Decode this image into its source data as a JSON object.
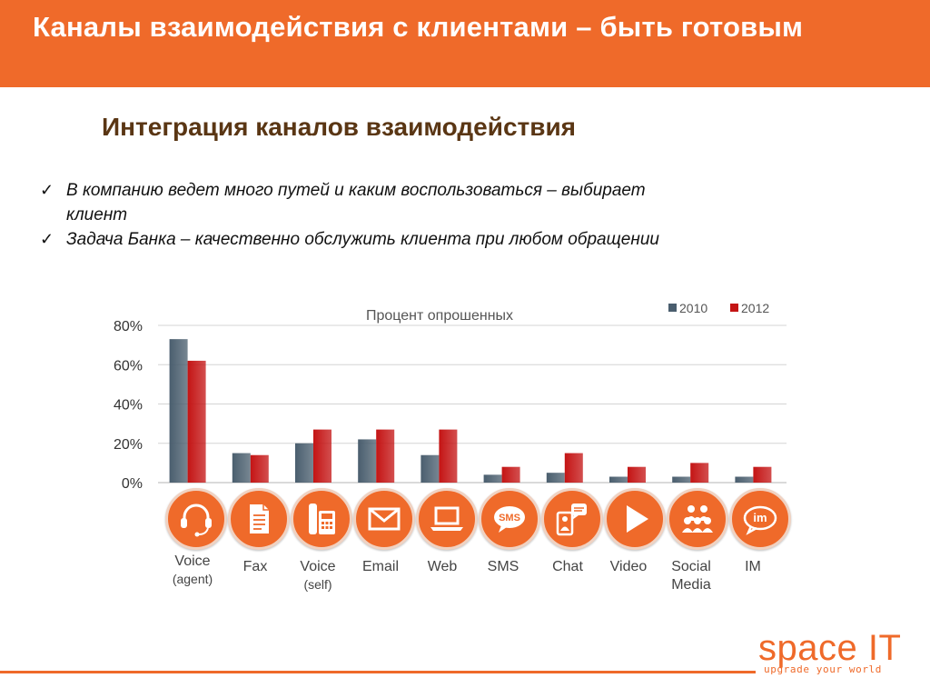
{
  "header": {
    "title": "Каналы взаимодействия с клиентами – быть готовым"
  },
  "subtitle": "Интеграция каналов взаимодействия",
  "bullets": [
    {
      "check": "✓",
      "text": "В компанию ведет много путей и каким воспользоваться – выбирает клиент"
    },
    {
      "check": "✓",
      "text": "Задача Банка – качественно обслужить клиента при любом обращении"
    }
  ],
  "chart_data": {
    "type": "bar",
    "title": "Процент опрошенных",
    "categories": [
      "Voice (agent)",
      "Fax",
      "Voice (self)",
      "Email",
      "Web",
      "SMS",
      "Chat",
      "Video",
      "Social Media",
      "IM"
    ],
    "series": [
      {
        "name": "2010",
        "color": "#4a5e6e",
        "values": [
          73,
          15,
          20,
          22,
          14,
          4,
          5,
          3,
          3,
          3
        ]
      },
      {
        "name": "2012",
        "color": "#c41414",
        "values": [
          62,
          14,
          27,
          27,
          27,
          8,
          15,
          8,
          10,
          8
        ]
      }
    ],
    "yticks": [
      "0%",
      "20%",
      "40%",
      "60%",
      "80%"
    ],
    "ylim": [
      0,
      80
    ],
    "grid": true,
    "legend_position": "top-right"
  },
  "channels": [
    {
      "icon": "headset-icon",
      "label": "Voice",
      "sub": "(agent)"
    },
    {
      "icon": "fax-icon",
      "label": "Fax",
      "sub": ""
    },
    {
      "icon": "phone-icon",
      "label": "Voice",
      "sub": "(self)"
    },
    {
      "icon": "email-icon",
      "label": "Email",
      "sub": ""
    },
    {
      "icon": "laptop-icon",
      "label": "Web",
      "sub": ""
    },
    {
      "icon": "sms-icon",
      "label": "SMS",
      "sub": ""
    },
    {
      "icon": "chat-icon",
      "label": "Chat",
      "sub": ""
    },
    {
      "icon": "play-icon",
      "label": "Video",
      "sub": ""
    },
    {
      "icon": "people-icon",
      "label": "Social Media",
      "sub": ""
    },
    {
      "icon": "im-icon",
      "label": "IM",
      "sub": ""
    }
  ],
  "logo": {
    "main": "space IT",
    "tagline": "upgrade your world"
  },
  "colors": {
    "accent": "#ef6a2a",
    "subtitle": "#5a3614"
  }
}
